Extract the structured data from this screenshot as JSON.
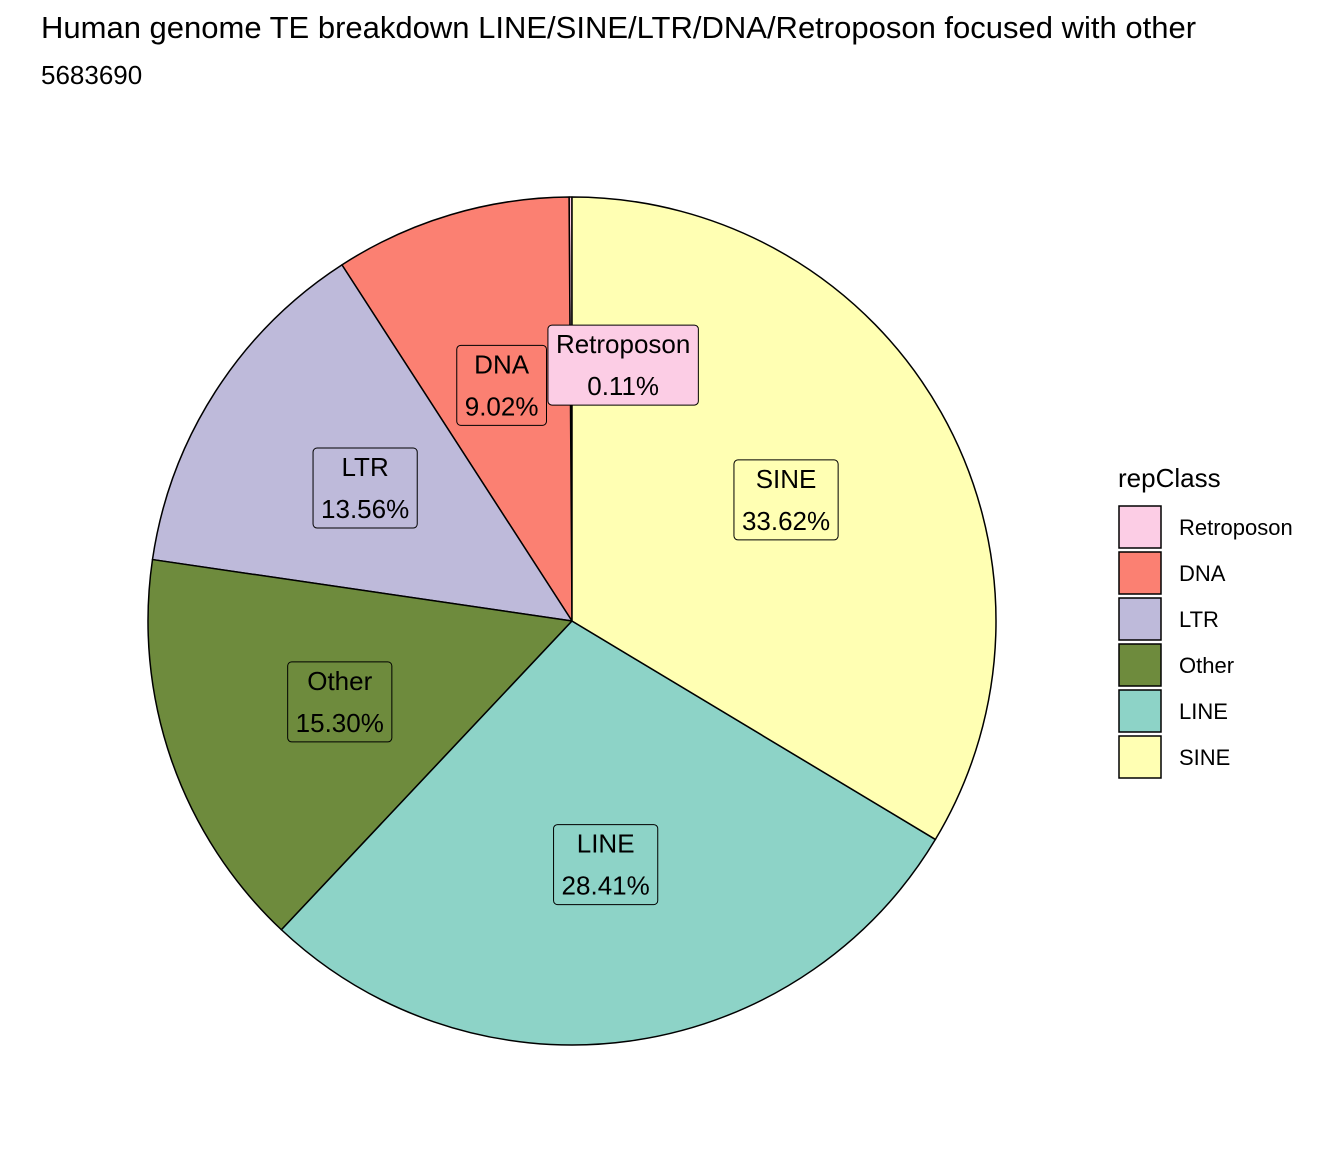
{
  "title": "Human genome TE breakdown LINE/SINE/LTR/DNA/Retroposon focused with other",
  "subtitle": "5683690",
  "chart_data": {
    "type": "pie",
    "title": "Human genome TE breakdown LINE/SINE/LTR/DNA/Retroposon focused with other",
    "subtitle": "5683690",
    "legend_title": "repClass",
    "legend_position": "right",
    "slices": [
      {
        "name": "Retroposon",
        "value": 0.11,
        "label": "0.11%",
        "color": "#FCCDE5"
      },
      {
        "name": "DNA",
        "value": 9.02,
        "label": "9.02%",
        "color": "#FB8072"
      },
      {
        "name": "LTR",
        "value": 13.56,
        "label": "13.56%",
        "color": "#BEBADA"
      },
      {
        "name": "Other",
        "value": 15.3,
        "label": "15.30%",
        "color": "#6E8B3D"
      },
      {
        "name": "LINE",
        "value": 28.41,
        "label": "28.41%",
        "color": "#8DD3C7"
      },
      {
        "name": "SINE",
        "value": 33.62,
        "label": "33.62%",
        "color": "#FFFFB3"
      }
    ]
  }
}
